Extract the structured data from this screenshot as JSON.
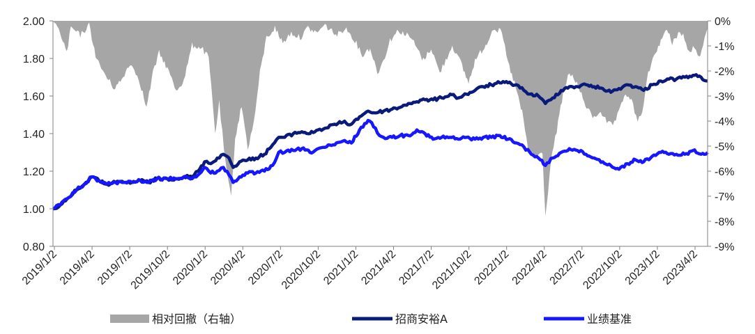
{
  "chart_data": {
    "type": "line",
    "title": "",
    "left_axis": {
      "min": 0.8,
      "max": 2.0,
      "ticks": [
        "0.80",
        "1.00",
        "1.20",
        "1.40",
        "1.60",
        "1.80",
        "2.00"
      ]
    },
    "right_axis": {
      "min": -9,
      "max": 0,
      "ticks": [
        "-9%",
        "-8%",
        "-7%",
        "-6%",
        "-5%",
        "-4%",
        "-3%",
        "-2%",
        "-1%",
        "0%"
      ]
    },
    "x_tick_labels": [
      "2019/1/2",
      "2019/4/2",
      "2019/7/2",
      "2019/10/2",
      "2020/1/2",
      "2020/4/2",
      "2020/7/2",
      "2020/10/2",
      "2021/1/2",
      "2021/4/2",
      "2021/7/2",
      "2021/10/2",
      "2022/1/2",
      "2022/4/2",
      "2022/7/2",
      "2022/10/2",
      "2023/1/2",
      "2023/4/2"
    ],
    "x_range": [
      "2019-01-02",
      "2023-05-31"
    ],
    "grid": false,
    "legend_placement": "bottom",
    "series": [
      {
        "name": "相对回撤（右轴）",
        "kind": "area",
        "axis": "right",
        "color": "#a6a6a6",
        "points": [
          [
            "2019-01-02",
            0
          ],
          [
            "2019-01-20",
            -0.4
          ],
          [
            "2019-02-05",
            -1.2
          ],
          [
            "2019-02-15",
            -0.2
          ],
          [
            "2019-03-10",
            -0.5
          ],
          [
            "2019-04-01",
            -0.1
          ],
          [
            "2019-04-20",
            -1.5
          ],
          [
            "2019-05-15",
            -2.2
          ],
          [
            "2019-06-01",
            -2.6
          ],
          [
            "2019-06-20",
            -2.3
          ],
          [
            "2019-07-10",
            -1.6
          ],
          [
            "2019-08-01",
            -2.2
          ],
          [
            "2019-08-20",
            -3.4
          ],
          [
            "2019-09-05",
            -2.0
          ],
          [
            "2019-09-20",
            -1.2
          ],
          [
            "2019-10-10",
            -1.8
          ],
          [
            "2019-11-01",
            -2.7
          ],
          [
            "2019-11-20",
            -2.3
          ],
          [
            "2019-12-10",
            -0.9
          ],
          [
            "2020-01-02",
            -1.0
          ],
          [
            "2020-01-20",
            -1.4
          ],
          [
            "2020-02-05",
            -4.4
          ],
          [
            "2020-02-15",
            -3.2
          ],
          [
            "2020-03-01",
            -5.6
          ],
          [
            "2020-03-15",
            -7.0
          ],
          [
            "2020-03-25",
            -4.6
          ],
          [
            "2020-04-10",
            -3.3
          ],
          [
            "2020-04-25",
            -5.0
          ],
          [
            "2020-05-10",
            -4.0
          ],
          [
            "2020-05-25",
            -2.0
          ],
          [
            "2020-06-10",
            -0.6
          ],
          [
            "2020-07-01",
            -0.2
          ],
          [
            "2020-07-20",
            -0.8
          ],
          [
            "2020-08-10",
            -0.4
          ],
          [
            "2020-09-01",
            -0.6
          ],
          [
            "2020-09-20",
            -0.2
          ],
          [
            "2020-10-10",
            -0.4
          ],
          [
            "2020-11-01",
            -0.1
          ],
          [
            "2020-12-01",
            -0.5
          ],
          [
            "2020-12-20",
            -0.2
          ],
          [
            "2021-01-10",
            -0.6
          ],
          [
            "2021-02-01",
            -1.3
          ],
          [
            "2021-02-20",
            -1.0
          ],
          [
            "2021-03-10",
            -2.0
          ],
          [
            "2021-03-25",
            -1.5
          ],
          [
            "2021-04-10",
            -0.7
          ],
          [
            "2021-05-01",
            -0.3
          ],
          [
            "2021-06-01",
            -0.6
          ],
          [
            "2021-07-01",
            -1.5
          ],
          [
            "2021-07-20",
            -1.0
          ],
          [
            "2021-08-10",
            -2.0
          ],
          [
            "2021-08-25",
            -1.5
          ],
          [
            "2021-09-10",
            -0.9
          ],
          [
            "2021-10-01",
            -1.6
          ],
          [
            "2021-10-20",
            -2.4
          ],
          [
            "2021-11-05",
            -1.5
          ],
          [
            "2021-12-01",
            -0.9
          ],
          [
            "2021-12-20",
            -0.2
          ],
          [
            "2022-01-10",
            -0.4
          ],
          [
            "2022-01-25",
            -1.6
          ],
          [
            "2022-02-10",
            -2.4
          ],
          [
            "2022-03-01",
            -3.6
          ],
          [
            "2022-03-15",
            -5.0
          ],
          [
            "2022-04-01",
            -5.4
          ],
          [
            "2022-04-20",
            -5.2
          ],
          [
            "2022-04-27",
            -7.8
          ],
          [
            "2022-05-10",
            -5.6
          ],
          [
            "2022-05-25",
            -4.3
          ],
          [
            "2022-06-10",
            -2.8
          ],
          [
            "2022-06-25",
            -2.0
          ],
          [
            "2022-07-10",
            -2.3
          ],
          [
            "2022-07-25",
            -2.9
          ],
          [
            "2022-08-10",
            -3.5
          ],
          [
            "2022-08-25",
            -3.8
          ],
          [
            "2022-09-10",
            -3.5
          ],
          [
            "2022-09-25",
            -4.0
          ],
          [
            "2022-10-10",
            -4.1
          ],
          [
            "2022-10-25",
            -3.6
          ],
          [
            "2022-11-10",
            -2.8
          ],
          [
            "2022-11-25",
            -3.1
          ],
          [
            "2022-12-10",
            -4.0
          ],
          [
            "2022-12-25",
            -3.3
          ],
          [
            "2023-01-05",
            -2.0
          ],
          [
            "2023-01-20",
            -1.3
          ],
          [
            "2023-02-05",
            -0.7
          ],
          [
            "2023-02-20",
            -0.3
          ],
          [
            "2023-03-05",
            -0.8
          ],
          [
            "2023-03-20",
            -0.4
          ],
          [
            "2023-04-01",
            -0.5
          ],
          [
            "2023-04-15",
            -1.2
          ],
          [
            "2023-04-25",
            -1.0
          ],
          [
            "2023-05-10",
            -1.4
          ],
          [
            "2023-05-20",
            -0.8
          ],
          [
            "2023-05-31",
            -0.3
          ]
        ]
      },
      {
        "name": "招商安裕A",
        "kind": "line",
        "axis": "left",
        "color": "#0a1a7a",
        "points": [
          [
            "2019-01-02",
            1.0
          ],
          [
            "2019-01-20",
            1.02
          ],
          [
            "2019-02-10",
            1.06
          ],
          [
            "2019-03-01",
            1.1
          ],
          [
            "2019-03-20",
            1.13
          ],
          [
            "2019-04-08",
            1.17
          ],
          [
            "2019-04-25",
            1.15
          ],
          [
            "2019-05-15",
            1.13
          ],
          [
            "2019-06-05",
            1.14
          ],
          [
            "2019-06-25",
            1.14
          ],
          [
            "2019-07-15",
            1.14
          ],
          [
            "2019-08-05",
            1.15
          ],
          [
            "2019-08-25",
            1.14
          ],
          [
            "2019-09-15",
            1.16
          ],
          [
            "2019-10-10",
            1.16
          ],
          [
            "2019-10-30",
            1.16
          ],
          [
            "2019-11-20",
            1.17
          ],
          [
            "2019-12-10",
            1.17
          ],
          [
            "2019-12-25",
            1.2
          ],
          [
            "2020-01-10",
            1.25
          ],
          [
            "2020-01-25",
            1.24
          ],
          [
            "2020-02-10",
            1.27
          ],
          [
            "2020-02-25",
            1.29
          ],
          [
            "2020-03-10",
            1.27
          ],
          [
            "2020-03-20",
            1.22
          ],
          [
            "2020-04-05",
            1.25
          ],
          [
            "2020-04-25",
            1.26
          ],
          [
            "2020-05-15",
            1.27
          ],
          [
            "2020-06-05",
            1.29
          ],
          [
            "2020-06-25",
            1.34
          ],
          [
            "2020-07-10",
            1.38
          ],
          [
            "2020-07-25",
            1.38
          ],
          [
            "2020-08-15",
            1.4
          ],
          [
            "2020-09-05",
            1.41
          ],
          [
            "2020-09-25",
            1.4
          ],
          [
            "2020-10-15",
            1.42
          ],
          [
            "2020-11-05",
            1.43
          ],
          [
            "2020-11-25",
            1.45
          ],
          [
            "2020-12-15",
            1.46
          ],
          [
            "2021-01-05",
            1.45
          ],
          [
            "2021-01-25",
            1.49
          ],
          [
            "2021-02-15",
            1.52
          ],
          [
            "2021-03-05",
            1.51
          ],
          [
            "2021-03-25",
            1.52
          ],
          [
            "2021-04-15",
            1.53
          ],
          [
            "2021-05-05",
            1.54
          ],
          [
            "2021-05-25",
            1.56
          ],
          [
            "2021-06-15",
            1.57
          ],
          [
            "2021-07-05",
            1.58
          ],
          [
            "2021-07-25",
            1.58
          ],
          [
            "2021-08-15",
            1.59
          ],
          [
            "2021-09-05",
            1.61
          ],
          [
            "2021-09-25",
            1.59
          ],
          [
            "2021-10-15",
            1.61
          ],
          [
            "2021-11-05",
            1.63
          ],
          [
            "2021-11-25",
            1.65
          ],
          [
            "2021-12-15",
            1.66
          ],
          [
            "2022-01-05",
            1.67
          ],
          [
            "2022-01-25",
            1.67
          ],
          [
            "2022-02-15",
            1.66
          ],
          [
            "2022-03-05",
            1.63
          ],
          [
            "2022-03-20",
            1.61
          ],
          [
            "2022-04-10",
            1.6
          ],
          [
            "2022-04-27",
            1.56
          ],
          [
            "2022-05-15",
            1.59
          ],
          [
            "2022-06-05",
            1.63
          ],
          [
            "2022-06-25",
            1.65
          ],
          [
            "2022-07-15",
            1.65
          ],
          [
            "2022-08-05",
            1.66
          ],
          [
            "2022-08-25",
            1.65
          ],
          [
            "2022-09-15",
            1.64
          ],
          [
            "2022-10-05",
            1.62
          ],
          [
            "2022-10-25",
            1.64
          ],
          [
            "2022-11-15",
            1.66
          ],
          [
            "2022-12-05",
            1.65
          ],
          [
            "2022-12-25",
            1.63
          ],
          [
            "2023-01-15",
            1.66
          ],
          [
            "2023-02-05",
            1.68
          ],
          [
            "2023-02-25",
            1.69
          ],
          [
            "2023-03-15",
            1.69
          ],
          [
            "2023-04-05",
            1.7
          ],
          [
            "2023-04-25",
            1.71
          ],
          [
            "2023-05-15",
            1.7
          ],
          [
            "2023-05-31",
            1.68
          ]
        ]
      },
      {
        "name": "业绩基准",
        "kind": "line",
        "axis": "left",
        "color": "#1717ff",
        "points": [
          [
            "2019-01-02",
            1.0
          ],
          [
            "2019-01-20",
            1.02
          ],
          [
            "2019-02-10",
            1.06
          ],
          [
            "2019-03-01",
            1.1
          ],
          [
            "2019-03-20",
            1.13
          ],
          [
            "2019-04-08",
            1.17
          ],
          [
            "2019-04-25",
            1.15
          ],
          [
            "2019-05-15",
            1.13
          ],
          [
            "2019-06-05",
            1.14
          ],
          [
            "2019-06-25",
            1.14
          ],
          [
            "2019-07-15",
            1.14
          ],
          [
            "2019-08-05",
            1.15
          ],
          [
            "2019-08-25",
            1.14
          ],
          [
            "2019-09-15",
            1.16
          ],
          [
            "2019-10-10",
            1.16
          ],
          [
            "2019-10-30",
            1.16
          ],
          [
            "2019-11-20",
            1.17
          ],
          [
            "2019-12-10",
            1.16
          ],
          [
            "2019-12-25",
            1.18
          ],
          [
            "2020-01-10",
            1.22
          ],
          [
            "2020-01-25",
            1.19
          ],
          [
            "2020-02-10",
            1.2
          ],
          [
            "2020-02-25",
            1.22
          ],
          [
            "2020-03-10",
            1.18
          ],
          [
            "2020-03-20",
            1.14
          ],
          [
            "2020-04-05",
            1.17
          ],
          [
            "2020-04-25",
            1.19
          ],
          [
            "2020-05-15",
            1.19
          ],
          [
            "2020-06-05",
            1.2
          ],
          [
            "2020-06-25",
            1.23
          ],
          [
            "2020-07-10",
            1.3
          ],
          [
            "2020-07-25",
            1.3
          ],
          [
            "2020-08-15",
            1.31
          ],
          [
            "2020-09-05",
            1.32
          ],
          [
            "2020-09-25",
            1.3
          ],
          [
            "2020-10-15",
            1.32
          ],
          [
            "2020-11-05",
            1.33
          ],
          [
            "2020-11-25",
            1.34
          ],
          [
            "2020-12-15",
            1.36
          ],
          [
            "2021-01-05",
            1.35
          ],
          [
            "2021-01-25",
            1.42
          ],
          [
            "2021-02-15",
            1.47
          ],
          [
            "2021-03-05",
            1.43
          ],
          [
            "2021-03-15",
            1.39
          ],
          [
            "2021-03-25",
            1.38
          ],
          [
            "2021-04-15",
            1.38
          ],
          [
            "2021-05-05",
            1.39
          ],
          [
            "2021-05-25",
            1.39
          ],
          [
            "2021-06-15",
            1.42
          ],
          [
            "2021-07-05",
            1.4
          ],
          [
            "2021-07-25",
            1.37
          ],
          [
            "2021-08-15",
            1.38
          ],
          [
            "2021-09-05",
            1.38
          ],
          [
            "2021-09-25",
            1.37
          ],
          [
            "2021-10-15",
            1.38
          ],
          [
            "2021-11-05",
            1.37
          ],
          [
            "2021-11-25",
            1.38
          ],
          [
            "2021-12-15",
            1.38
          ],
          [
            "2022-01-05",
            1.39
          ],
          [
            "2022-01-25",
            1.37
          ],
          [
            "2022-02-15",
            1.35
          ],
          [
            "2022-03-05",
            1.33
          ],
          [
            "2022-03-20",
            1.3
          ],
          [
            "2022-04-10",
            1.27
          ],
          [
            "2022-04-27",
            1.23
          ],
          [
            "2022-05-15",
            1.27
          ],
          [
            "2022-06-05",
            1.3
          ],
          [
            "2022-06-25",
            1.32
          ],
          [
            "2022-07-15",
            1.31
          ],
          [
            "2022-08-05",
            1.29
          ],
          [
            "2022-08-25",
            1.27
          ],
          [
            "2022-09-15",
            1.25
          ],
          [
            "2022-10-05",
            1.23
          ],
          [
            "2022-10-25",
            1.21
          ],
          [
            "2022-11-15",
            1.24
          ],
          [
            "2022-12-05",
            1.26
          ],
          [
            "2022-12-25",
            1.25
          ],
          [
            "2023-01-15",
            1.28
          ],
          [
            "2023-02-05",
            1.3
          ],
          [
            "2023-02-25",
            1.29
          ],
          [
            "2023-03-15",
            1.29
          ],
          [
            "2023-04-05",
            1.29
          ],
          [
            "2023-04-25",
            1.31
          ],
          [
            "2023-05-15",
            1.29
          ],
          [
            "2023-05-31",
            1.3
          ]
        ]
      }
    ]
  }
}
